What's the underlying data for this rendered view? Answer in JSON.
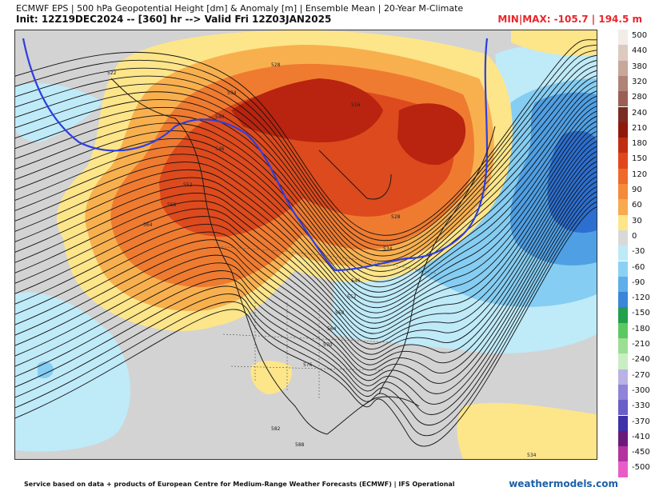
{
  "header": {
    "line1": "ECMWF EPS | 500 hPa Geopotential Height [dm] & Anomaly [m] | Ensemble Mean | 20-Year M-Climate",
    "line2": "Init: 12Z19DEC2024 -- [360] hr --> Valid Fri 12Z03JAN2025",
    "minmax": "MIN|MAX: -105.7 | 194.5 m"
  },
  "colorbar": {
    "labels": [
      "500",
      "440",
      "380",
      "320",
      "280",
      "240",
      "210",
      "180",
      "150",
      "120",
      "90",
      "60",
      "30",
      "0",
      "-30",
      "-60",
      "-90",
      "-120",
      "-150",
      "-180",
      "-210",
      "-240",
      "-270",
      "-300",
      "-330",
      "-370",
      "-410",
      "-450",
      "-500"
    ],
    "colors": [
      "#f2ece8",
      "#dcc9c0",
      "#c7a79a",
      "#b08378",
      "#9a5f55",
      "#7a2c22",
      "#8e1a0c",
      "#c12d12",
      "#e0481c",
      "#ee6a2a",
      "#f48a3a",
      "#f8aa4e",
      "#fde68a",
      "#d9d9d9",
      "#bdeaf7",
      "#8cd1f3",
      "#5eaeea",
      "#3b86d9",
      "#22a04a",
      "#5cc862",
      "#9adf93",
      "#c9eec3",
      "#b9b2e6",
      "#8f84d8",
      "#6a5ec7",
      "#3f31a8",
      "#6a1a7a",
      "#b3329e",
      "#e95cc8"
    ]
  },
  "map": {
    "contour_labels": [
      "522",
      "534",
      "540",
      "528",
      "516",
      "546",
      "552",
      "558",
      "564",
      "528",
      "534",
      "546",
      "552",
      "558",
      "564",
      "570",
      "576",
      "582",
      "588",
      "534"
    ],
    "colors": {
      "neutral": "#d3d3d3",
      "warm_light": "#fde58a",
      "warm_mid": "#f8b04f",
      "warm_orange": "#ef7b30",
      "warm_red": "#dd4a1d",
      "warm_dark": "#b8240f",
      "cool_light": "#bfeaf8",
      "cool_mid": "#85cdf2",
      "cool_blue": "#4f9fe4",
      "cool_dark": "#2c6fd0",
      "contour_5520": "#2e3ee0"
    }
  },
  "footer": {
    "credit": "Service based on data + products of European Centre for Medium-Range Weather Forecasts (ECMWF) | IFS Operational",
    "brand": "weathermodels.com"
  }
}
